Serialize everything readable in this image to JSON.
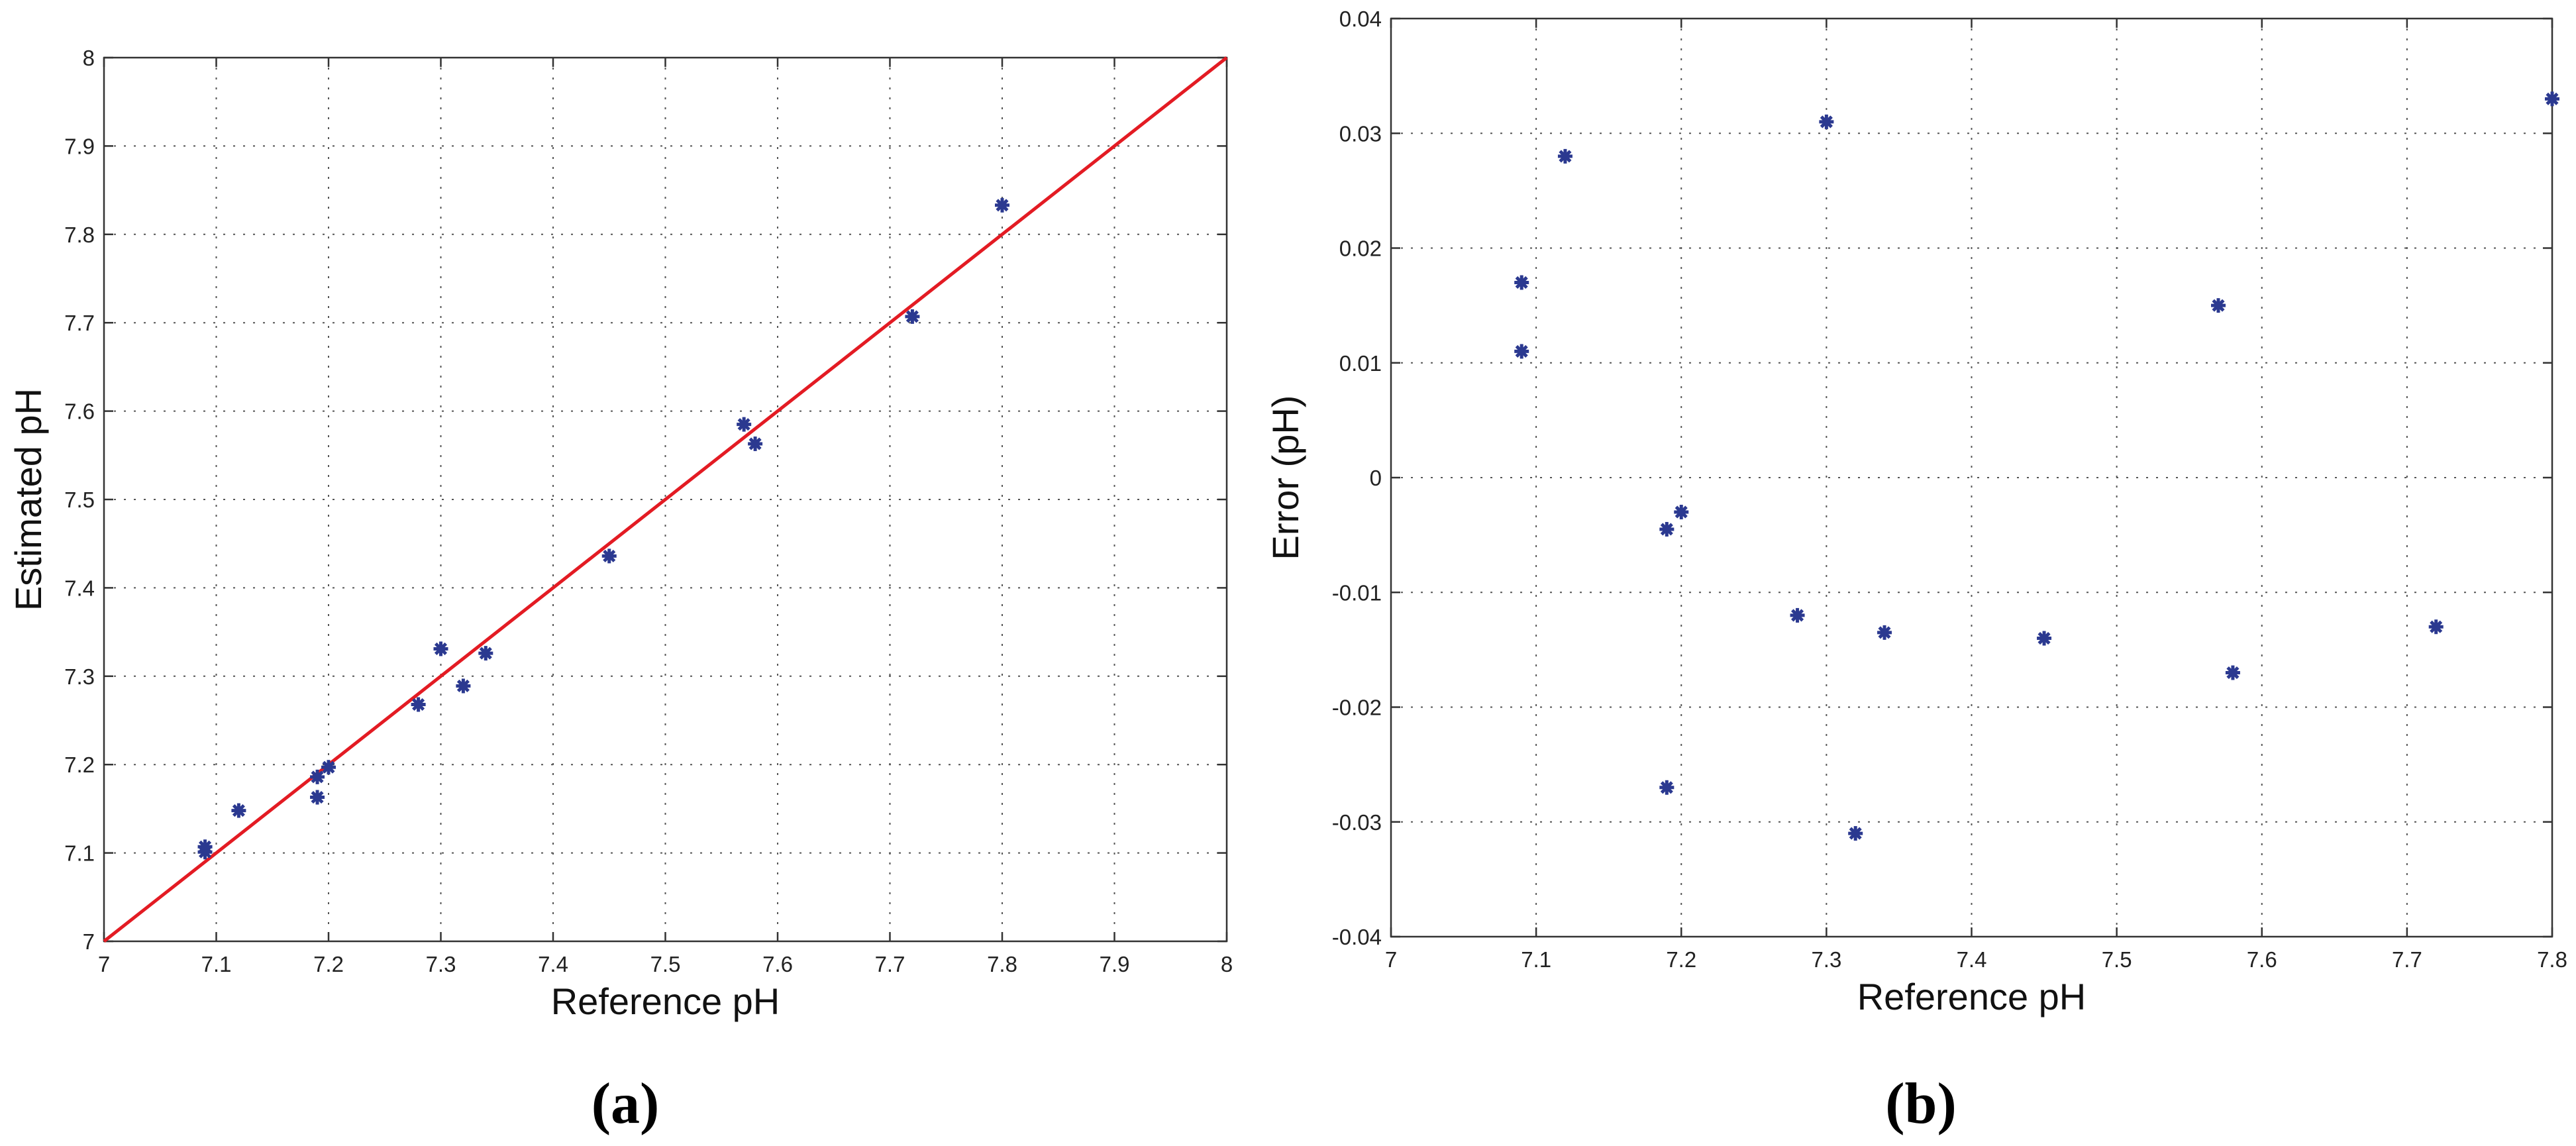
{
  "chart_data": [
    {
      "type": "scatter",
      "panel_label": "(a)",
      "xlabel": "Reference pH",
      "ylabel": "Estimated pH",
      "xlim": [
        7,
        8
      ],
      "ylim": [
        7,
        8
      ],
      "xticks": [
        "7",
        "7.1",
        "7.2",
        "7.3",
        "7.4",
        "7.5",
        "7.6",
        "7.7",
        "7.8",
        "7.9",
        "8"
      ],
      "yticks": [
        "7",
        "7.1",
        "7.2",
        "7.3",
        "7.4",
        "7.5",
        "7.6",
        "7.7",
        "7.8",
        "7.9",
        "8"
      ],
      "grid": true,
      "marker_color": "#2b3990",
      "line_color": "#e31b23",
      "reference_line": {
        "x": [
          7,
          8
        ],
        "y": [
          7,
          8
        ]
      },
      "x": [
        7.09,
        7.09,
        7.12,
        7.19,
        7.19,
        7.2,
        7.28,
        7.3,
        7.32,
        7.34,
        7.45,
        7.57,
        7.58,
        7.72,
        7.8
      ],
      "y": [
        7.101,
        7.107,
        7.148,
        7.163,
        7.186,
        7.197,
        7.268,
        7.331,
        7.289,
        7.326,
        7.436,
        7.585,
        7.563,
        7.707,
        7.833
      ]
    },
    {
      "type": "scatter",
      "panel_label": "(b)",
      "xlabel": "Reference pH",
      "ylabel": "Error (pH)",
      "xlim": [
        7,
        7.8
      ],
      "ylim": [
        -0.04,
        0.04
      ],
      "xticks": [
        "7",
        "7.1",
        "7.2",
        "7.3",
        "7.4",
        "7.5",
        "7.6",
        "7.7",
        "7.8"
      ],
      "yticks": [
        "-0.04",
        "-0.03",
        "-0.02",
        "-0.01",
        "0",
        "0.01",
        "0.02",
        "0.03",
        "0.04"
      ],
      "grid": true,
      "marker_color": "#2b3990",
      "x": [
        7.09,
        7.09,
        7.12,
        7.19,
        7.19,
        7.2,
        7.28,
        7.3,
        7.32,
        7.34,
        7.45,
        7.57,
        7.58,
        7.72,
        7.8
      ],
      "y": [
        0.011,
        0.017,
        0.028,
        -0.027,
        -0.0045,
        -0.003,
        -0.012,
        0.031,
        -0.031,
        -0.0135,
        -0.014,
        0.015,
        -0.017,
        -0.013,
        0.033
      ]
    }
  ]
}
